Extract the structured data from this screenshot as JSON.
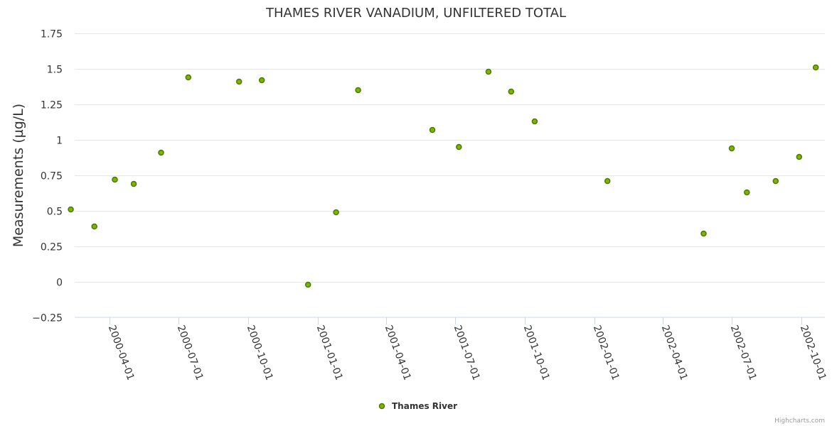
{
  "chart_data": {
    "type": "scatter",
    "title": "THAMES RIVER VANADIUM, UNFILTERED TOTAL",
    "xlabel": "",
    "ylabel": "Measurements (µg/L)",
    "ylim": [
      -0.25,
      1.75
    ],
    "y_ticks": [
      -0.25,
      0,
      0.25,
      0.5,
      0.75,
      1,
      1.25,
      1.5,
      1.75
    ],
    "y_tick_labels": [
      "−0.25",
      "0",
      "0.25",
      "0.5",
      "0.75",
      "1",
      "1.25",
      "1.5",
      "1.75"
    ],
    "x_ticks": [
      "2000-04-01",
      "2000-07-01",
      "2000-10-01",
      "2001-01-01",
      "2001-04-01",
      "2001-07-01",
      "2001-10-01",
      "2002-01-01",
      "2002-04-01",
      "2002-07-01",
      "2002-10-01"
    ],
    "grid": true,
    "legend_position": "bottom-center",
    "series": [
      {
        "name": "Thames River",
        "color": "#7cb500",
        "edge_color": "#4a7a00",
        "points": [
          {
            "x": "2000-02-10",
            "y": 0.51
          },
          {
            "x": "2000-03-12",
            "y": 0.39
          },
          {
            "x": "2000-04-08",
            "y": 0.72
          },
          {
            "x": "2000-05-03",
            "y": 0.69
          },
          {
            "x": "2000-06-08",
            "y": 0.91
          },
          {
            "x": "2000-07-14",
            "y": 1.44
          },
          {
            "x": "2000-09-19",
            "y": 1.41
          },
          {
            "x": "2000-10-19",
            "y": 1.42
          },
          {
            "x": "2000-12-19",
            "y": -0.02
          },
          {
            "x": "2001-01-25",
            "y": 0.49
          },
          {
            "x": "2001-02-23",
            "y": 1.35
          },
          {
            "x": "2001-06-01",
            "y": 1.07
          },
          {
            "x": "2001-07-06",
            "y": 0.95
          },
          {
            "x": "2001-08-14",
            "y": 1.48
          },
          {
            "x": "2001-09-13",
            "y": 1.34
          },
          {
            "x": "2001-10-14",
            "y": 1.13
          },
          {
            "x": "2002-01-18",
            "y": 0.71
          },
          {
            "x": "2002-05-25",
            "y": 0.34
          },
          {
            "x": "2002-07-01",
            "y": 0.94
          },
          {
            "x": "2002-07-21",
            "y": 0.63
          },
          {
            "x": "2002-08-28",
            "y": 0.71
          },
          {
            "x": "2002-09-28",
            "y": 0.88
          },
          {
            "x": "2002-10-20",
            "y": 1.51
          }
        ]
      }
    ]
  },
  "credits": "Highcharts.com"
}
